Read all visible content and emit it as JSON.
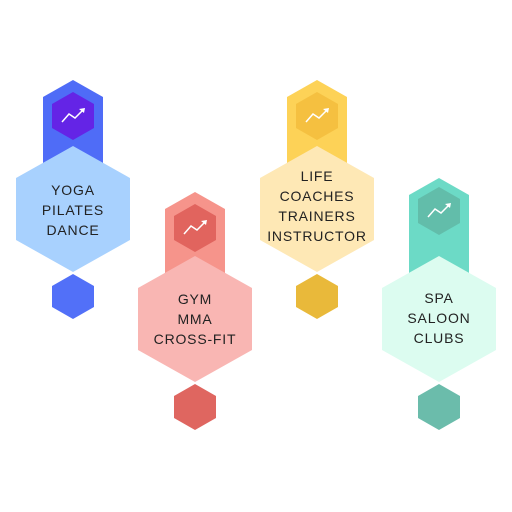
{
  "cards": [
    {
      "id": "fitness",
      "lines": [
        "YOGA",
        "PILATES",
        "DANCE"
      ],
      "icon": "trend-up-icon",
      "colors": {
        "stem": "#4f6cf7",
        "top": "#6424e6",
        "body": "#a8d1fe",
        "bottom": "#5270f8"
      }
    },
    {
      "id": "coaching",
      "lines": [
        "LIFE",
        "COACHES",
        "TRAINERS",
        "INSTRUCTOR"
      ],
      "icon": "trend-up-icon",
      "colors": {
        "stem": "#fdd257",
        "top": "#f5c040",
        "body": "#fee8b5",
        "bottom": "#e9b93a"
      }
    },
    {
      "id": "gym",
      "lines": [
        "GYM",
        "MMA",
        "CROSS-FIT"
      ],
      "icon": "trend-up-icon",
      "colors": {
        "stem": "#f6948b",
        "top": "#e1645e",
        "body": "#f9b6b3",
        "bottom": "#df6660"
      }
    },
    {
      "id": "wellness",
      "lines": [
        "SPA",
        "SALOON",
        "CLUBS"
      ],
      "icon": "trend-up-icon",
      "colors": {
        "stem": "#6cdac6",
        "top": "#62bdaa",
        "body": "#dcfcf0",
        "bottom": "#6bbcab"
      }
    }
  ]
}
